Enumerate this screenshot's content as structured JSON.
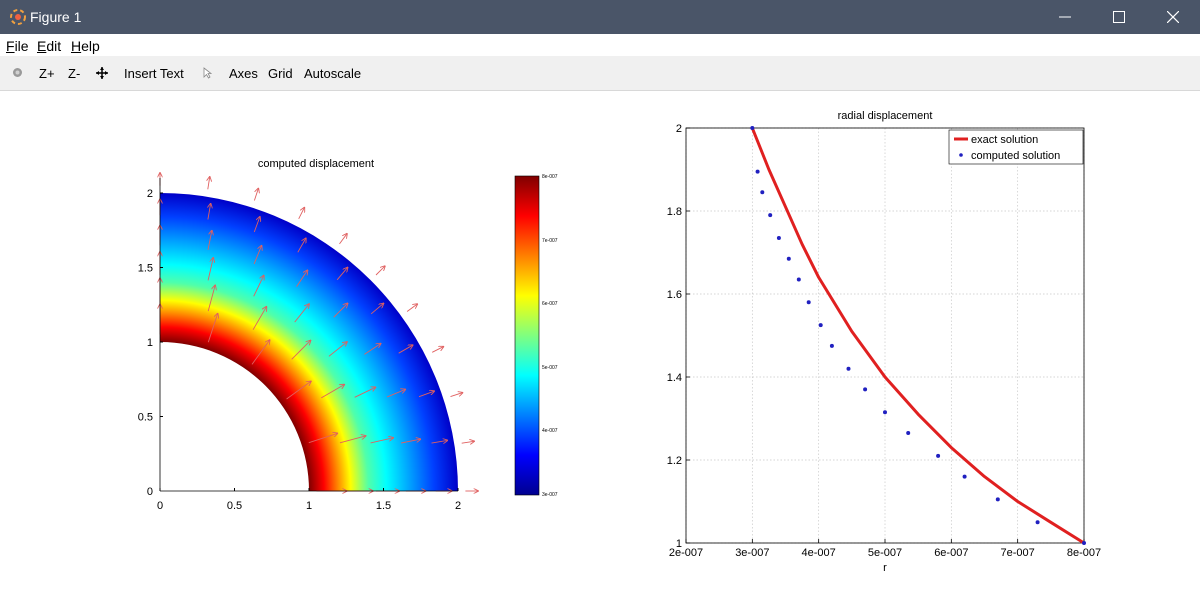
{
  "window": {
    "title": "Figure 1",
    "app_icon": "octave-logo-icon",
    "controls": [
      "minimize-icon",
      "maximize-icon",
      "close-icon"
    ]
  },
  "menu": {
    "file_u": "F",
    "file_rest": "ile",
    "edit_u": "E",
    "edit_rest": "dit",
    "help_u": "H",
    "help_rest": "elp"
  },
  "toolbar": {
    "rotate_icon": "rotate-icon",
    "zoom_in": "Z+",
    "zoom_out": "Z-",
    "pan_icon": "pan-icon",
    "insert_text": "Insert Text",
    "select_icon": "select-arrow-icon",
    "axes": "Axes",
    "grid": "Grid",
    "autoscale": "Autoscale"
  },
  "left_plot": {
    "title": "computed displacement",
    "xticks": [
      "0",
      "0.5",
      "1",
      "1.5",
      "2"
    ],
    "yticks": [
      "0",
      "0.5",
      "1",
      "1.5",
      "2"
    ],
    "colorbar_ticks": [
      "3e-007",
      "4e-007",
      "5e-007",
      "6e-007",
      "7e-007",
      "8e-007"
    ],
    "colorbar_range": [
      3e-07,
      8e-07
    ],
    "colormap": [
      "#00008f",
      "#0000ff",
      "#00ffff",
      "#ffff00",
      "#ff0000",
      "#800000"
    ],
    "arrow_color": "#e06060"
  },
  "chart_data": {
    "type": "line",
    "title": "radial displacement",
    "xlabel": "r",
    "ylabel": "",
    "xlim": [
      2e-07,
      8e-07
    ],
    "ylim": [
      1,
      2
    ],
    "xticks": [
      "2e-007",
      "3e-007",
      "4e-007",
      "5e-007",
      "6e-007",
      "7e-007",
      "8e-007"
    ],
    "yticks": [
      "1",
      "1.2",
      "1.4",
      "1.6",
      "1.8",
      "2"
    ],
    "grid": true,
    "legend_position": "top-right",
    "series": [
      {
        "name": "exact solution",
        "style": "line",
        "color": "#e02020",
        "x": [
          8e-07,
          7.5e-07,
          7e-07,
          6.5e-07,
          6e-07,
          5.5e-07,
          5e-07,
          4.5e-07,
          4e-07,
          3.75e-07,
          3.5e-07,
          3.25e-07,
          3e-07
        ],
        "y": [
          1.0,
          1.05,
          1.1,
          1.16,
          1.23,
          1.31,
          1.4,
          1.51,
          1.64,
          1.72,
          1.81,
          1.9,
          2.0
        ]
      },
      {
        "name": "computed solution",
        "style": "points",
        "color": "#2020c0",
        "x": [
          8e-07,
          7.3e-07,
          6.7e-07,
          6.2e-07,
          5.8e-07,
          5.35e-07,
          5e-07,
          4.7e-07,
          4.45e-07,
          4.2e-07,
          4.03e-07,
          3.85e-07,
          3.7e-07,
          3.55e-07,
          3.4e-07,
          3.27e-07,
          3.15e-07,
          3.08e-07,
          3e-07
        ],
        "y": [
          1.0,
          1.05,
          1.105,
          1.16,
          1.21,
          1.265,
          1.315,
          1.37,
          1.42,
          1.475,
          1.525,
          1.58,
          1.635,
          1.685,
          1.735,
          1.79,
          1.845,
          1.895,
          2.0
        ]
      }
    ]
  }
}
